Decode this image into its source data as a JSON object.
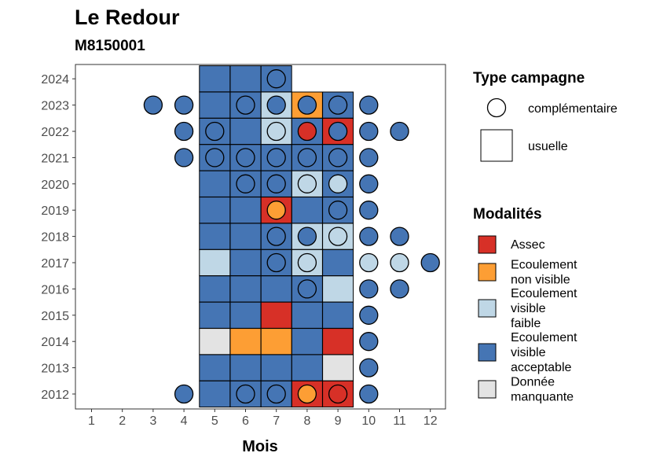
{
  "title": "Le Redour",
  "subtitle": "M8150001",
  "colors": {
    "Assec": "#d73027",
    "Ecoulement non visible": "#fd9e34",
    "Ecoulement visible faible": "#bfd7e6",
    "Ecoulement visible acceptable": "#4575b4",
    "Donnée manquante": "#e3e3e3"
  },
  "chart_data": {
    "type": "heatmap",
    "title": "Le Redour",
    "subtitle": "M8150001",
    "xlabel": "Mois",
    "ylabel": "",
    "x_ticks": [
      1,
      2,
      3,
      4,
      5,
      6,
      7,
      8,
      9,
      10,
      11,
      12
    ],
    "y_ticks": [
      2012,
      2013,
      2014,
      2015,
      2016,
      2017,
      2018,
      2019,
      2020,
      2021,
      2022,
      2023,
      2024
    ],
    "grid": false,
    "legend_position": "right",
    "legends": [
      {
        "title": "Type campagne",
        "entries": [
          {
            "label": "complémentaire",
            "shape": "circle"
          },
          {
            "label": "usuelle",
            "shape": "square"
          }
        ]
      },
      {
        "title": "Modalités",
        "entries": [
          {
            "label": "Assec",
            "lines": [
              "Assec"
            ],
            "color": "#d73027"
          },
          {
            "label": "Ecoulement non visible",
            "lines": [
              "Ecoulement",
              "non visible"
            ],
            "color": "#fd9e34"
          },
          {
            "label": "Ecoulement visible faible",
            "lines": [
              "Ecoulement",
              "visible",
              "faible"
            ],
            "color": "#bfd7e6"
          },
          {
            "label": "Ecoulement visible acceptable",
            "lines": [
              "Ecoulement",
              "visible",
              "acceptable"
            ],
            "color": "#4575b4"
          },
          {
            "label": "Donnée manquante",
            "lines": [
              "Donnée",
              "manquante"
            ],
            "color": "#e3e3e3"
          }
        ]
      }
    ],
    "usuelle": [
      {
        "year": 2024,
        "month": 5,
        "value": "Ecoulement visible acceptable"
      },
      {
        "year": 2024,
        "month": 6,
        "value": "Ecoulement visible acceptable"
      },
      {
        "year": 2024,
        "month": 7,
        "value": "Ecoulement visible acceptable"
      },
      {
        "year": 2023,
        "month": 5,
        "value": "Ecoulement visible acceptable"
      },
      {
        "year": 2023,
        "month": 6,
        "value": "Ecoulement visible acceptable"
      },
      {
        "year": 2023,
        "month": 7,
        "value": "Ecoulement visible faible"
      },
      {
        "year": 2023,
        "month": 8,
        "value": "Ecoulement non visible"
      },
      {
        "year": 2023,
        "month": 9,
        "value": "Ecoulement visible acceptable"
      },
      {
        "year": 2022,
        "month": 5,
        "value": "Ecoulement visible acceptable"
      },
      {
        "year": 2022,
        "month": 6,
        "value": "Ecoulement visible acceptable"
      },
      {
        "year": 2022,
        "month": 7,
        "value": "Ecoulement visible faible"
      },
      {
        "year": 2022,
        "month": 8,
        "value": "Ecoulement visible acceptable"
      },
      {
        "year": 2022,
        "month": 9,
        "value": "Assec"
      },
      {
        "year": 2021,
        "month": 5,
        "value": "Ecoulement visible acceptable"
      },
      {
        "year": 2021,
        "month": 6,
        "value": "Ecoulement visible acceptable"
      },
      {
        "year": 2021,
        "month": 7,
        "value": "Ecoulement visible acceptable"
      },
      {
        "year": 2021,
        "month": 8,
        "value": "Ecoulement visible acceptable"
      },
      {
        "year": 2021,
        "month": 9,
        "value": "Ecoulement visible acceptable"
      },
      {
        "year": 2020,
        "month": 5,
        "value": "Ecoulement visible acceptable"
      },
      {
        "year": 2020,
        "month": 6,
        "value": "Ecoulement visible acceptable"
      },
      {
        "year": 2020,
        "month": 7,
        "value": "Ecoulement visible acceptable"
      },
      {
        "year": 2020,
        "month": 8,
        "value": "Ecoulement visible faible"
      },
      {
        "year": 2020,
        "month": 9,
        "value": "Ecoulement visible acceptable"
      },
      {
        "year": 2019,
        "month": 5,
        "value": "Ecoulement visible acceptable"
      },
      {
        "year": 2019,
        "month": 6,
        "value": "Ecoulement visible acceptable"
      },
      {
        "year": 2019,
        "month": 7,
        "value": "Assec"
      },
      {
        "year": 2019,
        "month": 8,
        "value": "Ecoulement visible acceptable"
      },
      {
        "year": 2019,
        "month": 9,
        "value": "Ecoulement visible acceptable"
      },
      {
        "year": 2018,
        "month": 5,
        "value": "Ecoulement visible acceptable"
      },
      {
        "year": 2018,
        "month": 6,
        "value": "Ecoulement visible acceptable"
      },
      {
        "year": 2018,
        "month": 7,
        "value": "Ecoulement visible acceptable"
      },
      {
        "year": 2018,
        "month": 8,
        "value": "Ecoulement visible faible"
      },
      {
        "year": 2018,
        "month": 9,
        "value": "Ecoulement visible faible"
      },
      {
        "year": 2017,
        "month": 5,
        "value": "Ecoulement visible faible"
      },
      {
        "year": 2017,
        "month": 6,
        "value": "Ecoulement visible acceptable"
      },
      {
        "year": 2017,
        "month": 7,
        "value": "Ecoulement visible acceptable"
      },
      {
        "year": 2017,
        "month": 8,
        "value": "Ecoulement visible faible"
      },
      {
        "year": 2017,
        "month": 9,
        "value": "Ecoulement visible acceptable"
      },
      {
        "year": 2016,
        "month": 5,
        "value": "Ecoulement visible acceptable"
      },
      {
        "year": 2016,
        "month": 6,
        "value": "Ecoulement visible acceptable"
      },
      {
        "year": 2016,
        "month": 7,
        "value": "Ecoulement visible acceptable"
      },
      {
        "year": 2016,
        "month": 8,
        "value": "Ecoulement visible acceptable"
      },
      {
        "year": 2016,
        "month": 9,
        "value": "Ecoulement visible faible"
      },
      {
        "year": 2015,
        "month": 5,
        "value": "Ecoulement visible acceptable"
      },
      {
        "year": 2015,
        "month": 6,
        "value": "Ecoulement visible acceptable"
      },
      {
        "year": 2015,
        "month": 7,
        "value": "Assec"
      },
      {
        "year": 2015,
        "month": 8,
        "value": "Ecoulement visible acceptable"
      },
      {
        "year": 2015,
        "month": 9,
        "value": "Ecoulement visible acceptable"
      },
      {
        "year": 2014,
        "month": 5,
        "value": "Donnée manquante"
      },
      {
        "year": 2014,
        "month": 6,
        "value": "Ecoulement non visible"
      },
      {
        "year": 2014,
        "month": 7,
        "value": "Ecoulement non visible"
      },
      {
        "year": 2014,
        "month": 8,
        "value": "Ecoulement visible acceptable"
      },
      {
        "year": 2014,
        "month": 9,
        "value": "Assec"
      },
      {
        "year": 2013,
        "month": 5,
        "value": "Ecoulement visible acceptable"
      },
      {
        "year": 2013,
        "month": 6,
        "value": "Ecoulement visible acceptable"
      },
      {
        "year": 2013,
        "month": 7,
        "value": "Ecoulement visible acceptable"
      },
      {
        "year": 2013,
        "month": 8,
        "value": "Ecoulement visible acceptable"
      },
      {
        "year": 2013,
        "month": 9,
        "value": "Donnée manquante"
      },
      {
        "year": 2012,
        "month": 5,
        "value": "Ecoulement visible acceptable"
      },
      {
        "year": 2012,
        "month": 6,
        "value": "Ecoulement visible acceptable"
      },
      {
        "year": 2012,
        "month": 7,
        "value": "Ecoulement visible acceptable"
      },
      {
        "year": 2012,
        "month": 8,
        "value": "Assec"
      },
      {
        "year": 2012,
        "month": 9,
        "value": "Assec"
      }
    ],
    "complementaire": [
      {
        "year": 2024,
        "month": 7,
        "value": "Ecoulement visible acceptable"
      },
      {
        "year": 2023,
        "month": 3,
        "value": "Ecoulement visible acceptable"
      },
      {
        "year": 2023,
        "month": 4,
        "value": "Ecoulement visible acceptable"
      },
      {
        "year": 2023,
        "month": 6,
        "value": "Ecoulement visible acceptable"
      },
      {
        "year": 2023,
        "month": 7,
        "value": "Ecoulement visible acceptable"
      },
      {
        "year": 2023,
        "month": 8,
        "value": "Ecoulement visible acceptable"
      },
      {
        "year": 2023,
        "month": 9,
        "value": "Ecoulement visible acceptable"
      },
      {
        "year": 2023,
        "month": 10,
        "value": "Ecoulement visible acceptable"
      },
      {
        "year": 2022,
        "month": 4,
        "value": "Ecoulement visible acceptable"
      },
      {
        "year": 2022,
        "month": 5,
        "value": "Ecoulement visible acceptable"
      },
      {
        "year": 2022,
        "month": 7,
        "value": "Ecoulement visible faible"
      },
      {
        "year": 2022,
        "month": 8,
        "value": "Assec"
      },
      {
        "year": 2022,
        "month": 9,
        "value": "Ecoulement visible acceptable"
      },
      {
        "year": 2022,
        "month": 10,
        "value": "Ecoulement visible acceptable"
      },
      {
        "year": 2022,
        "month": 11,
        "value": "Ecoulement visible acceptable"
      },
      {
        "year": 2021,
        "month": 4,
        "value": "Ecoulement visible acceptable"
      },
      {
        "year": 2021,
        "month": 5,
        "value": "Ecoulement visible acceptable"
      },
      {
        "year": 2021,
        "month": 6,
        "value": "Ecoulement visible acceptable"
      },
      {
        "year": 2021,
        "month": 7,
        "value": "Ecoulement visible acceptable"
      },
      {
        "year": 2021,
        "month": 8,
        "value": "Ecoulement visible acceptable"
      },
      {
        "year": 2021,
        "month": 9,
        "value": "Ecoulement visible acceptable"
      },
      {
        "year": 2021,
        "month": 10,
        "value": "Ecoulement visible acceptable"
      },
      {
        "year": 2020,
        "month": 6,
        "value": "Ecoulement visible acceptable"
      },
      {
        "year": 2020,
        "month": 7,
        "value": "Ecoulement visible acceptable"
      },
      {
        "year": 2020,
        "month": 8,
        "value": "Ecoulement visible faible"
      },
      {
        "year": 2020,
        "month": 9,
        "value": "Ecoulement visible faible"
      },
      {
        "year": 2020,
        "month": 10,
        "value": "Ecoulement visible acceptable"
      },
      {
        "year": 2019,
        "month": 7,
        "value": "Ecoulement non visible"
      },
      {
        "year": 2019,
        "month": 9,
        "value": "Ecoulement visible acceptable"
      },
      {
        "year": 2019,
        "month": 10,
        "value": "Ecoulement visible acceptable"
      },
      {
        "year": 2018,
        "month": 7,
        "value": "Ecoulement visible acceptable"
      },
      {
        "year": 2018,
        "month": 8,
        "value": "Ecoulement visible acceptable"
      },
      {
        "year": 2018,
        "month": 9,
        "value": "Ecoulement visible faible"
      },
      {
        "year": 2018,
        "month": 10,
        "value": "Ecoulement visible acceptable"
      },
      {
        "year": 2018,
        "month": 11,
        "value": "Ecoulement visible acceptable"
      },
      {
        "year": 2017,
        "month": 7,
        "value": "Ecoulement visible acceptable"
      },
      {
        "year": 2017,
        "month": 8,
        "value": "Ecoulement visible faible"
      },
      {
        "year": 2017,
        "month": 10,
        "value": "Ecoulement visible faible"
      },
      {
        "year": 2017,
        "month": 11,
        "value": "Ecoulement visible faible"
      },
      {
        "year": 2017,
        "month": 12,
        "value": "Ecoulement visible acceptable"
      },
      {
        "year": 2016,
        "month": 8,
        "value": "Ecoulement visible acceptable"
      },
      {
        "year": 2016,
        "month": 10,
        "value": "Ecoulement visible acceptable"
      },
      {
        "year": 2016,
        "month": 11,
        "value": "Ecoulement visible acceptable"
      },
      {
        "year": 2015,
        "month": 10,
        "value": "Ecoulement visible acceptable"
      },
      {
        "year": 2014,
        "month": 10,
        "value": "Ecoulement visible acceptable"
      },
      {
        "year": 2013,
        "month": 10,
        "value": "Ecoulement visible acceptable"
      },
      {
        "year": 2012,
        "month": 4,
        "value": "Ecoulement visible acceptable"
      },
      {
        "year": 2012,
        "month": 6,
        "value": "Ecoulement visible acceptable"
      },
      {
        "year": 2012,
        "month": 7,
        "value": "Ecoulement visible acceptable"
      },
      {
        "year": 2012,
        "month": 8,
        "value": "Ecoulement non visible"
      },
      {
        "year": 2012,
        "month": 9,
        "value": "Assec"
      },
      {
        "year": 2012,
        "month": 10,
        "value": "Ecoulement visible acceptable"
      }
    ]
  }
}
